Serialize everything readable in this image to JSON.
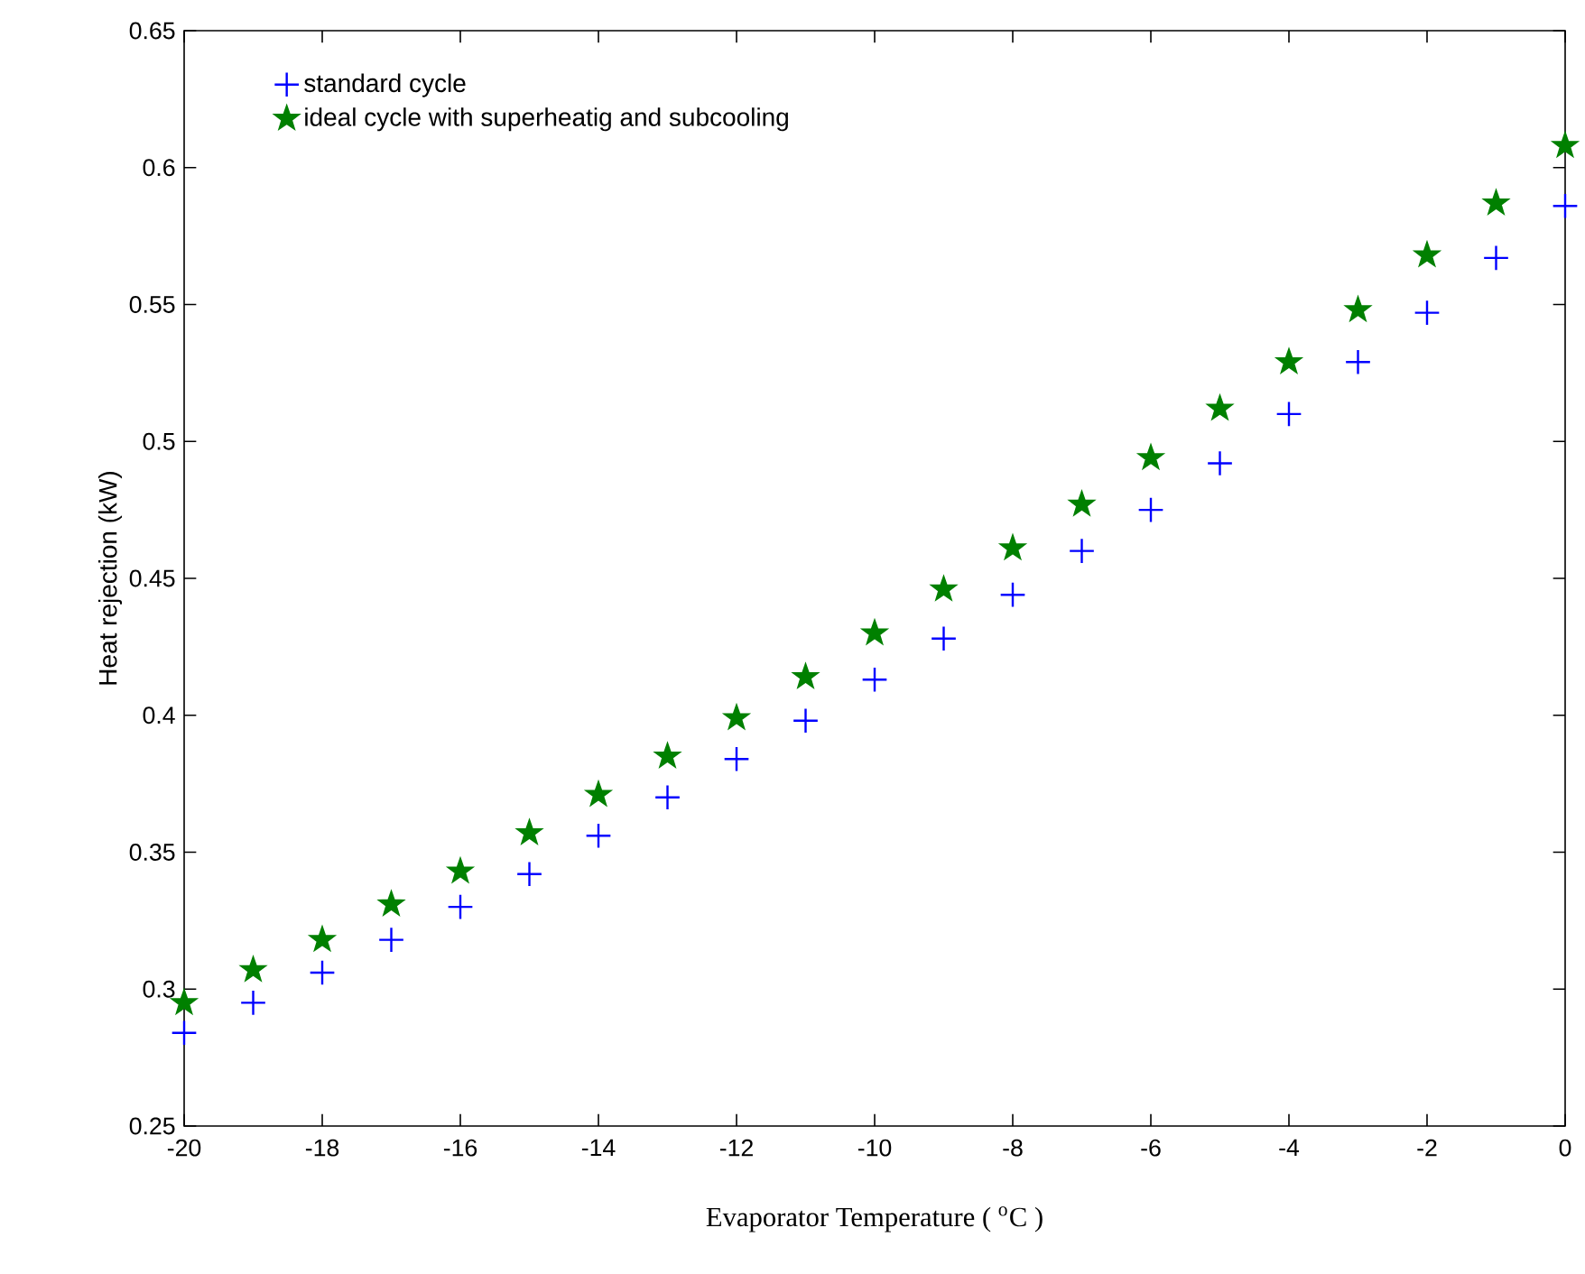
{
  "chart_data": {
    "type": "scatter",
    "xlabel": "Evaporator Temperature ( $^{o}$C )",
    "ylabel": "Heat rejection (kW)",
    "x": [
      -20,
      -19,
      -18,
      -17,
      -16,
      -15,
      -14,
      -13,
      -12,
      -11,
      -10,
      -9,
      -8,
      -7,
      -6,
      -5,
      -4,
      -3,
      -2,
      -1,
      0
    ],
    "series": [
      {
        "name": "standard cycle",
        "color": "#0000ff",
        "marker": "cross",
        "values": [
          0.284,
          0.295,
          0.306,
          0.318,
          0.33,
          0.342,
          0.356,
          0.37,
          0.384,
          0.398,
          0.413,
          0.428,
          0.444,
          0.46,
          0.475,
          0.492,
          0.51,
          0.529,
          0.547,
          0.567,
          0.586
        ]
      },
      {
        "name": "ideal cycle with superheatig and subcooling",
        "color": "#008000",
        "marker": "star",
        "values": [
          0.295,
          0.307,
          0.318,
          0.331,
          0.343,
          0.357,
          0.371,
          0.385,
          0.399,
          0.414,
          0.43,
          0.446,
          0.461,
          0.477,
          0.494,
          0.512,
          0.529,
          0.548,
          0.568,
          0.587,
          0.608
        ]
      }
    ],
    "xlim": [
      -20,
      0
    ],
    "ylim": [
      0.25,
      0.65
    ],
    "xticks": [
      -20,
      -18,
      -16,
      -14,
      -12,
      -10,
      -8,
      -6,
      -4,
      -2,
      0
    ],
    "yticks": [
      0.25,
      0.3,
      0.35,
      0.4,
      0.45,
      0.5,
      0.55,
      0.6,
      0.65
    ],
    "grid": false,
    "legend": "top left"
  }
}
